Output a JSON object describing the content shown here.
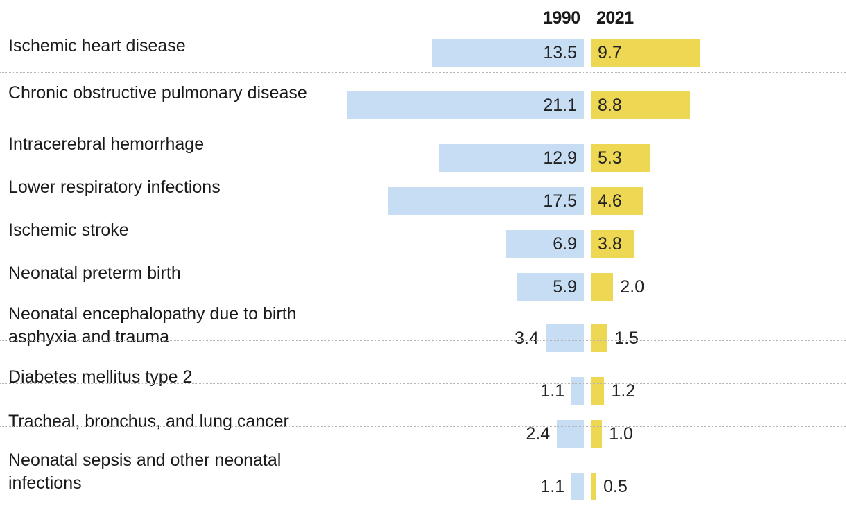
{
  "chart_data": {
    "type": "bar",
    "orientation": "horizontal",
    "layout": "diverging-paired",
    "series_names": [
      "1990",
      "2021"
    ],
    "series_colors": [
      "#c6ddf3",
      "#eed753"
    ],
    "categories": [
      "Ischemic heart disease",
      "Chronic obstructive pulmonary disease",
      "Intracerebral hemorrhage",
      "Lower respiratory infections",
      "Ischemic stroke",
      "Neonatal preterm birth",
      "Neonatal encephalopathy due to birth asphyxia and trauma",
      "Diabetes mellitus type 2",
      "Tracheal, bronchus, and lung cancer",
      "Neonatal sepsis and other neonatal infections"
    ],
    "series": [
      {
        "name": "1990",
        "values": [
          13.5,
          21.1,
          12.9,
          17.5,
          6.9,
          5.9,
          3.4,
          1.1,
          2.4,
          1.1
        ]
      },
      {
        "name": "2021",
        "values": [
          9.7,
          8.8,
          5.3,
          4.6,
          3.8,
          2.0,
          1.5,
          1.2,
          1.0,
          0.5
        ]
      }
    ],
    "labels_1990": [
      "13.5",
      "21.1",
      "12.9",
      "17.5",
      "6.9",
      "5.9",
      "3.4",
      "1.1",
      "2.4",
      "1.1"
    ],
    "labels_2021": [
      "9.7",
      "8.8",
      "5.3",
      "4.6",
      "3.8",
      "2.0",
      "1.5",
      "1.2",
      "1.0",
      "0.5"
    ],
    "title": "",
    "xlabel": "",
    "ylabel": "",
    "grid": false,
    "legend": "top-center"
  }
}
